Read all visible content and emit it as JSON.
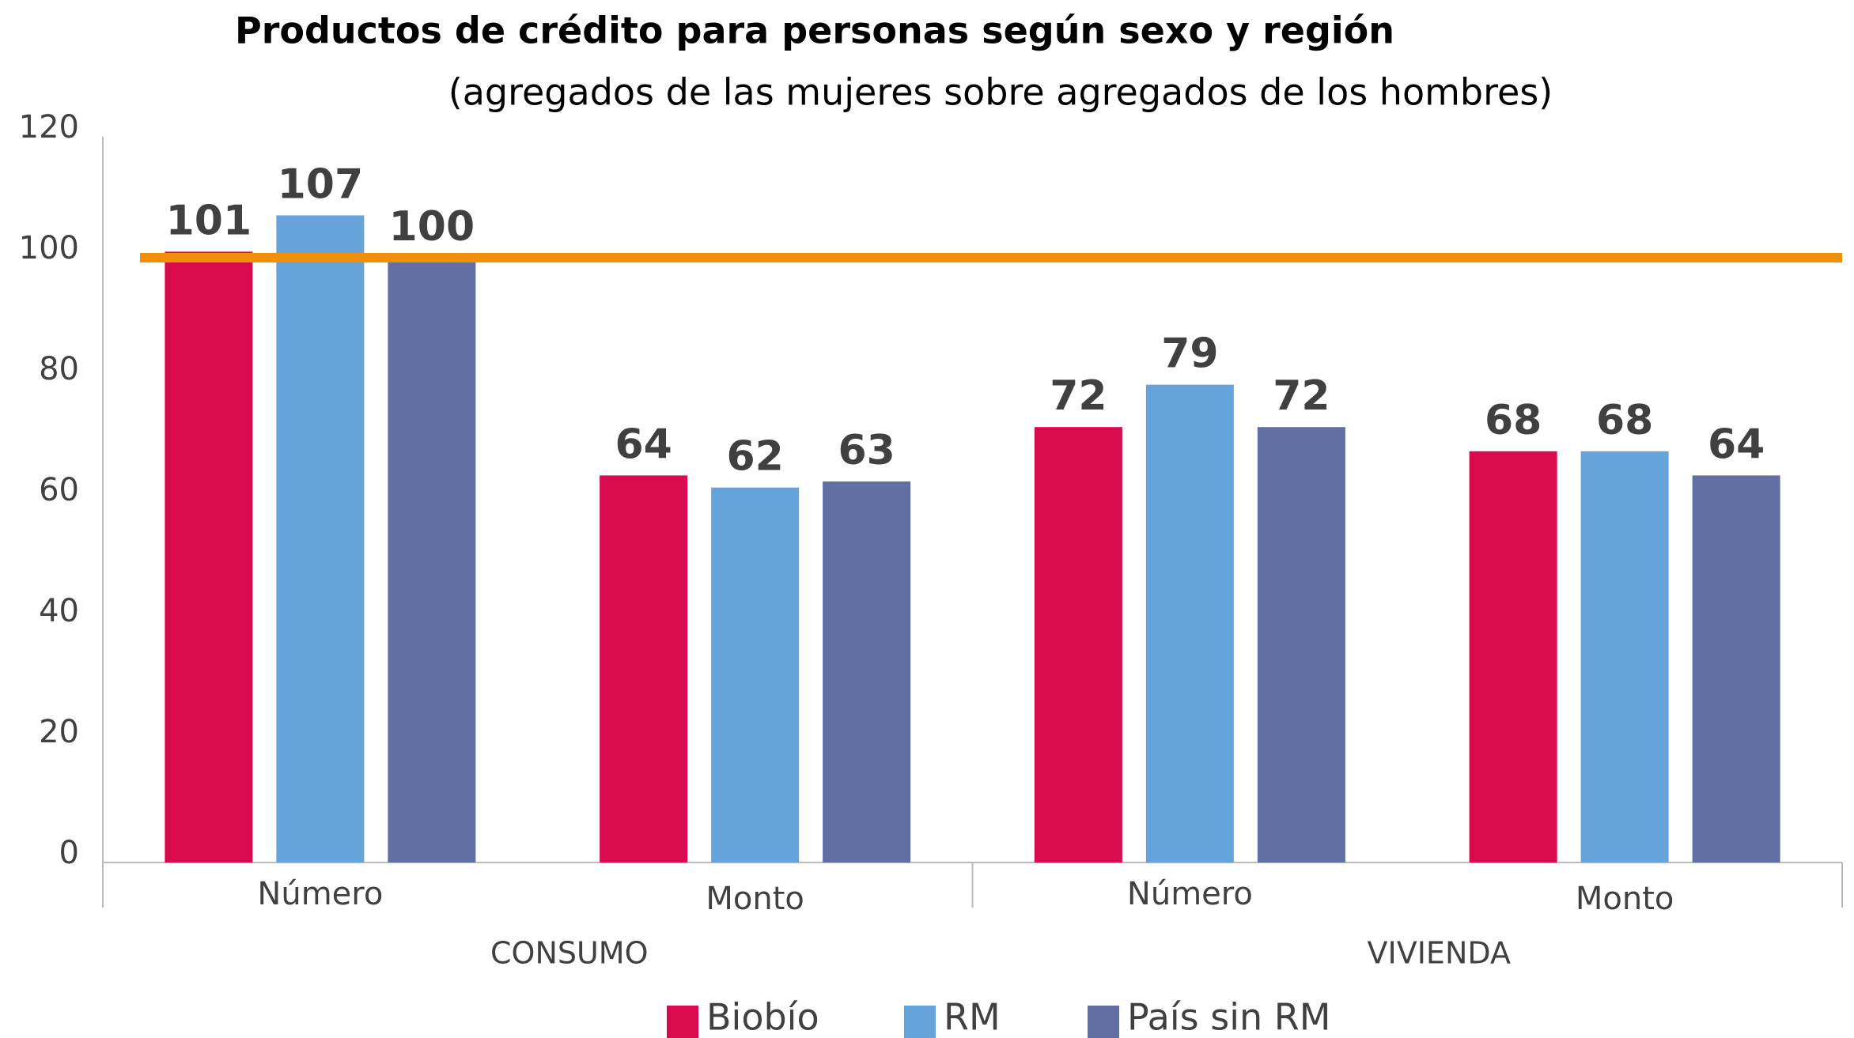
{
  "chart_data": {
    "type": "bar",
    "title": "Productos de crédito para personas según sexo y región",
    "subtitle": "(agregados de las mujeres sobre agregados de los hombres)",
    "categories": [
      "Número",
      "Monto",
      "Número",
      "Monto"
    ],
    "group_labels": [
      "CONSUMO",
      "VIVIENDA"
    ],
    "series": [
      {
        "name": "Biobío",
        "color": "#d90b4f",
        "values": [
          101,
          64,
          72,
          68
        ]
      },
      {
        "name": "RM",
        "color": "#66a3da",
        "values": [
          107,
          62,
          79,
          68
        ]
      },
      {
        "name": "País sin RM",
        "color": "#626fa3",
        "values": [
          100,
          63,
          72,
          64
        ]
      }
    ],
    "reference_line": {
      "value": 100,
      "color": "#f0900a"
    },
    "ylim": [
      0,
      120
    ],
    "yticks": [
      0,
      20,
      40,
      60,
      80,
      100,
      120
    ],
    "grid": false,
    "legend": "bottom"
  }
}
